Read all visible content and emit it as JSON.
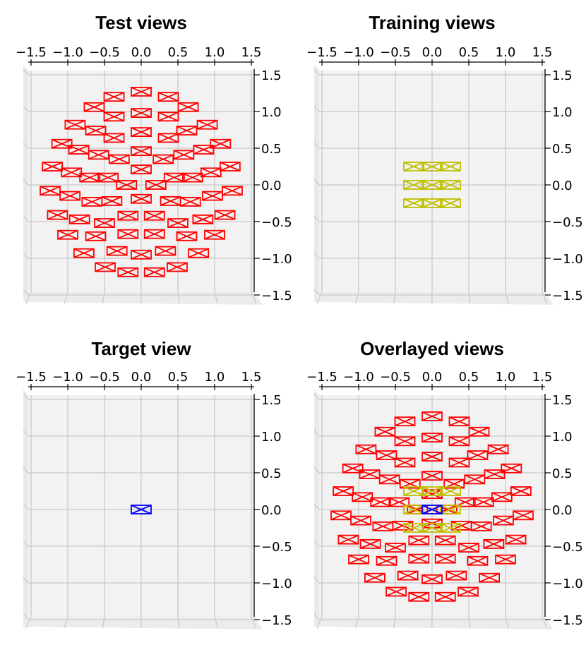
{
  "colors": {
    "test": "#ff0000",
    "training": "#bfbf00",
    "target": "#0000ff",
    "pane": "#f2f2f2",
    "grid": "#c8c8c8"
  },
  "chart_data": [
    {
      "type": "scatter",
      "title": "Test views",
      "xticks": [
        "−1.5",
        "−1.0",
        "−0.5",
        "0.0",
        "0.5",
        "1.0",
        "1.5"
      ],
      "yticks": [
        "1.5",
        "1.0",
        "0.5",
        "0.0",
        "−0.5",
        "−1.0",
        "−1.5"
      ],
      "xlim": [
        -1.5,
        1.5
      ],
      "ylim": [
        -1.5,
        1.5
      ],
      "grid": true,
      "series": [
        {
          "color": "#ff0000",
          "points": [
            [
              0.0,
              1.27
            ],
            [
              -0.37,
              1.2
            ],
            [
              0.37,
              1.2
            ],
            [
              -0.64,
              1.06
            ],
            [
              0.64,
              1.06
            ],
            [
              -0.37,
              0.93
            ],
            [
              0.0,
              0.98
            ],
            [
              0.37,
              0.93
            ],
            [
              -0.9,
              0.82
            ],
            [
              0.9,
              0.82
            ],
            [
              -0.62,
              0.74
            ],
            [
              0.0,
              0.72
            ],
            [
              0.62,
              0.74
            ],
            [
              -0.37,
              0.64
            ],
            [
              0.37,
              0.64
            ],
            [
              -1.08,
              0.56
            ],
            [
              -0.85,
              0.48
            ],
            [
              -0.58,
              0.41
            ],
            [
              -0.3,
              0.35
            ],
            [
              0.0,
              0.46
            ],
            [
              0.3,
              0.35
            ],
            [
              0.58,
              0.41
            ],
            [
              0.85,
              0.48
            ],
            [
              1.08,
              0.56
            ],
            [
              -1.21,
              0.25
            ],
            [
              -0.95,
              0.17
            ],
            [
              -0.7,
              0.1
            ],
            [
              -0.45,
              0.1
            ],
            [
              -0.2,
              0.0
            ],
            [
              0.0,
              0.21
            ],
            [
              0.2,
              0.0
            ],
            [
              0.45,
              0.1
            ],
            [
              0.7,
              0.1
            ],
            [
              0.95,
              0.17
            ],
            [
              1.21,
              0.25
            ],
            [
              -1.24,
              -0.08
            ],
            [
              -0.97,
              -0.15
            ],
            [
              -0.67,
              -0.23
            ],
            [
              -0.4,
              -0.22
            ],
            [
              0.0,
              -0.19
            ],
            [
              0.4,
              -0.22
            ],
            [
              0.67,
              -0.23
            ],
            [
              0.97,
              -0.15
            ],
            [
              1.24,
              -0.08
            ],
            [
              -1.14,
              -0.41
            ],
            [
              -0.84,
              -0.47
            ],
            [
              -0.5,
              -0.52
            ],
            [
              -0.18,
              -0.42
            ],
            [
              0.18,
              -0.42
            ],
            [
              0.5,
              -0.52
            ],
            [
              0.84,
              -0.47
            ],
            [
              1.14,
              -0.41
            ],
            [
              -1.0,
              -0.68
            ],
            [
              -0.62,
              -0.7
            ],
            [
              -0.18,
              -0.67
            ],
            [
              0.18,
              -0.67
            ],
            [
              0.62,
              -0.7
            ],
            [
              1.0,
              -0.68
            ],
            [
              -0.78,
              -0.93
            ],
            [
              -0.33,
              -0.9
            ],
            [
              0.0,
              -0.95
            ],
            [
              0.33,
              -0.9
            ],
            [
              0.78,
              -0.93
            ],
            [
              -0.49,
              -1.12
            ],
            [
              0.49,
              -1.12
            ],
            [
              -0.18,
              -1.19
            ],
            [
              0.18,
              -1.19
            ]
          ]
        }
      ]
    },
    {
      "type": "scatter",
      "title": "Training views",
      "xticks": [
        "−1.5",
        "−1.0",
        "−0.5",
        "0.0",
        "0.5",
        "1.0",
        "1.5"
      ],
      "yticks": [
        "1.5",
        "1.0",
        "0.5",
        "0.0",
        "−0.5",
        "−1.0",
        "−1.5"
      ],
      "xlim": [
        -1.5,
        1.5
      ],
      "ylim": [
        -1.5,
        1.5
      ],
      "grid": true,
      "series": [
        {
          "color": "#bfbf00",
          "points": [
            [
              -0.25,
              0.25
            ],
            [
              0.0,
              0.25
            ],
            [
              0.25,
              0.25
            ],
            [
              -0.25,
              0.0
            ],
            [
              0.0,
              0.0
            ],
            [
              0.25,
              0.0
            ],
            [
              -0.25,
              -0.25
            ],
            [
              0.0,
              -0.25
            ],
            [
              0.25,
              -0.25
            ]
          ]
        }
      ]
    },
    {
      "type": "scatter",
      "title": "Target view",
      "xticks": [
        "−1.5",
        "−1.0",
        "−0.5",
        "0.0",
        "0.5",
        "1.0",
        "1.5"
      ],
      "yticks": [
        "1.5",
        "1.0",
        "0.5",
        "0.0",
        "−0.5",
        "−1.0",
        "−1.5"
      ],
      "xlim": [
        -1.5,
        1.5
      ],
      "ylim": [
        -1.5,
        1.5
      ],
      "grid": true,
      "series": [
        {
          "color": "#0000ff",
          "points": [
            [
              0.0,
              0.0
            ]
          ]
        }
      ]
    },
    {
      "type": "scatter",
      "title": "Overlayed views",
      "xticks": [
        "−1.5",
        "−1.0",
        "−0.5",
        "0.0",
        "0.5",
        "1.0",
        "1.5"
      ],
      "yticks": [
        "1.5",
        "1.0",
        "0.5",
        "0.0",
        "−0.5",
        "−1.0",
        "−1.5"
      ],
      "xlim": [
        -1.5,
        1.5
      ],
      "ylim": [
        -1.5,
        1.5
      ],
      "grid": true,
      "series": [
        {
          "color": "#ff0000",
          "points": [
            [
              0.0,
              1.27
            ],
            [
              -0.37,
              1.2
            ],
            [
              0.37,
              1.2
            ],
            [
              -0.64,
              1.06
            ],
            [
              0.64,
              1.06
            ],
            [
              -0.37,
              0.93
            ],
            [
              0.0,
              0.98
            ],
            [
              0.37,
              0.93
            ],
            [
              -0.9,
              0.82
            ],
            [
              0.9,
              0.82
            ],
            [
              -0.62,
              0.74
            ],
            [
              0.0,
              0.72
            ],
            [
              0.62,
              0.74
            ],
            [
              -0.37,
              0.64
            ],
            [
              0.37,
              0.64
            ],
            [
              -1.08,
              0.56
            ],
            [
              -0.85,
              0.48
            ],
            [
              -0.58,
              0.41
            ],
            [
              -0.3,
              0.35
            ],
            [
              0.0,
              0.46
            ],
            [
              0.3,
              0.35
            ],
            [
              0.58,
              0.41
            ],
            [
              0.85,
              0.48
            ],
            [
              1.08,
              0.56
            ],
            [
              -1.21,
              0.25
            ],
            [
              -0.95,
              0.17
            ],
            [
              -0.7,
              0.1
            ],
            [
              -0.45,
              0.1
            ],
            [
              -0.2,
              0.0
            ],
            [
              0.0,
              0.21
            ],
            [
              0.2,
              0.0
            ],
            [
              0.45,
              0.1
            ],
            [
              0.7,
              0.1
            ],
            [
              0.95,
              0.17
            ],
            [
              1.21,
              0.25
            ],
            [
              -1.24,
              -0.08
            ],
            [
              -0.97,
              -0.15
            ],
            [
              -0.67,
              -0.23
            ],
            [
              -0.4,
              -0.22
            ],
            [
              0.0,
              -0.19
            ],
            [
              0.4,
              -0.22
            ],
            [
              0.67,
              -0.23
            ],
            [
              0.97,
              -0.15
            ],
            [
              1.24,
              -0.08
            ],
            [
              -1.14,
              -0.41
            ],
            [
              -0.84,
              -0.47
            ],
            [
              -0.5,
              -0.52
            ],
            [
              -0.18,
              -0.42
            ],
            [
              0.18,
              -0.42
            ],
            [
              0.5,
              -0.52
            ],
            [
              0.84,
              -0.47
            ],
            [
              1.14,
              -0.41
            ],
            [
              -1.0,
              -0.68
            ],
            [
              -0.62,
              -0.7
            ],
            [
              -0.18,
              -0.67
            ],
            [
              0.18,
              -0.67
            ],
            [
              0.62,
              -0.7
            ],
            [
              1.0,
              -0.68
            ],
            [
              -0.78,
              -0.93
            ],
            [
              -0.33,
              -0.9
            ],
            [
              0.0,
              -0.95
            ],
            [
              0.33,
              -0.9
            ],
            [
              0.78,
              -0.93
            ],
            [
              -0.49,
              -1.12
            ],
            [
              0.49,
              -1.12
            ],
            [
              -0.18,
              -1.19
            ],
            [
              0.18,
              -1.19
            ]
          ]
        },
        {
          "color": "#bfbf00",
          "points": [
            [
              -0.25,
              0.25
            ],
            [
              0.0,
              0.25
            ],
            [
              0.25,
              0.25
            ],
            [
              -0.25,
              0.0
            ],
            [
              0.0,
              0.0
            ],
            [
              0.25,
              0.0
            ],
            [
              -0.25,
              -0.25
            ],
            [
              0.0,
              -0.25
            ],
            [
              0.25,
              -0.25
            ]
          ]
        },
        {
          "color": "#0000ff",
          "points": [
            [
              0.0,
              0.0
            ]
          ]
        }
      ]
    }
  ]
}
